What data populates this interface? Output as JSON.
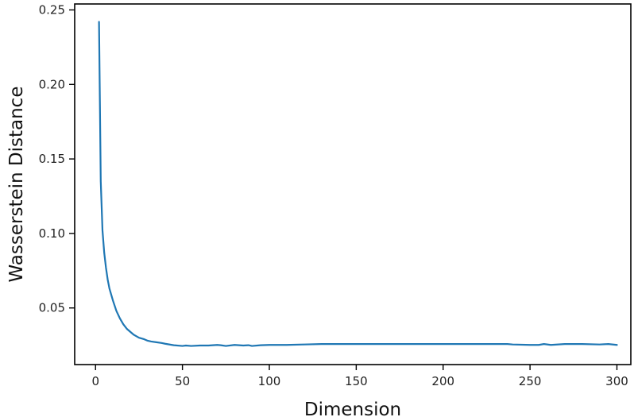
{
  "chart_data": {
    "type": "line",
    "title": "",
    "xlabel": "Dimension",
    "ylabel": "Wasserstein Distance",
    "xlim": [
      -12,
      308
    ],
    "ylim": [
      0.012,
      0.254
    ],
    "xticks": [
      0,
      50,
      100,
      150,
      200,
      250,
      300
    ],
    "yticks": [
      0.05,
      0.1,
      0.15,
      0.2,
      0.25
    ],
    "xtick_labels": [
      "0",
      "50",
      "100",
      "150",
      "200",
      "250",
      "300"
    ],
    "ytick_labels": [
      "0.05",
      "0.10",
      "0.15",
      "0.20",
      "0.25"
    ],
    "grid": false,
    "legend": false,
    "series": [
      {
        "color": "#1f77b4",
        "x": [
          2,
          3,
          4,
          5,
          6,
          7,
          8,
          9,
          10,
          12,
          14,
          16,
          18,
          20,
          22,
          25,
          28,
          30,
          32,
          35,
          38,
          40,
          45,
          50,
          52,
          55,
          60,
          65,
          70,
          72,
          75,
          80,
          85,
          88,
          90,
          95,
          100,
          110,
          120,
          130,
          150,
          175,
          200,
          225,
          237,
          240,
          250,
          255,
          258,
          262,
          270,
          280,
          290,
          295,
          300
        ],
        "y": [
          0.242,
          0.135,
          0.102,
          0.087,
          0.077,
          0.069,
          0.063,
          0.059,
          0.055,
          0.048,
          0.043,
          0.039,
          0.036,
          0.034,
          0.032,
          0.03,
          0.029,
          0.028,
          0.0275,
          0.027,
          0.0265,
          0.026,
          0.025,
          0.0245,
          0.0248,
          0.0245,
          0.0248,
          0.0248,
          0.0252,
          0.025,
          0.0245,
          0.0252,
          0.0248,
          0.025,
          0.0245,
          0.025,
          0.0252,
          0.0252,
          0.0255,
          0.0258,
          0.0258,
          0.0258,
          0.0258,
          0.0258,
          0.0258,
          0.0255,
          0.0252,
          0.0252,
          0.0258,
          0.0252,
          0.0258,
          0.0258,
          0.0255,
          0.0258,
          0.0252
        ]
      }
    ]
  }
}
